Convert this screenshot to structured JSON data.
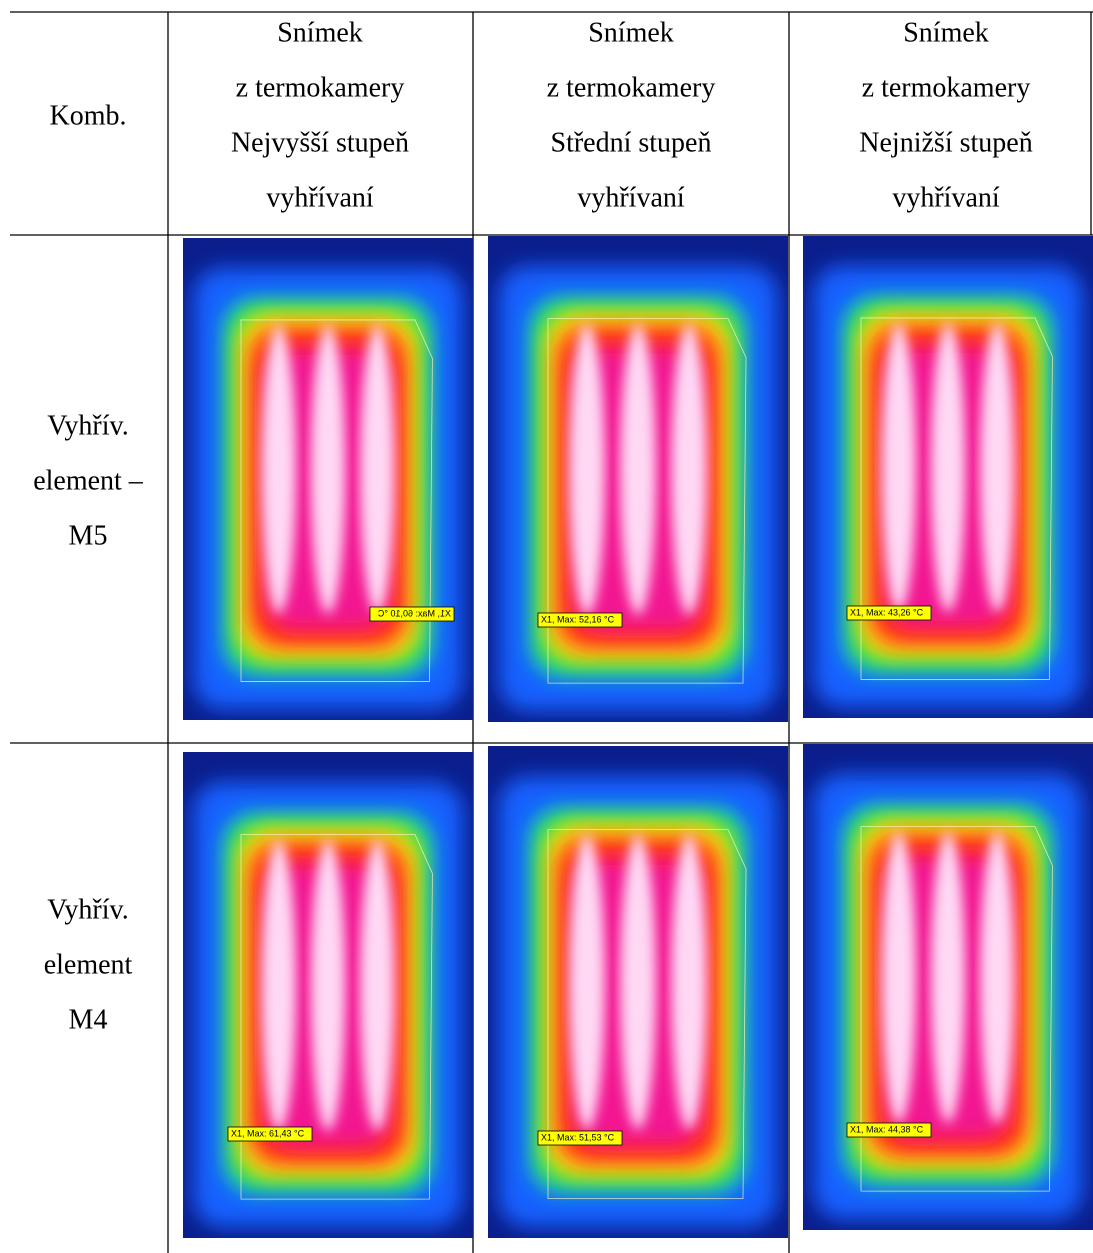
{
  "table": {
    "header": [
      [
        "Komb."
      ],
      [
        "Snímek",
        "z termokamery",
        "Nejvyšší stupeň",
        "vyhřívaní"
      ],
      [
        "Snímek",
        "z termokamery",
        "Střední stupeň",
        "vyhřívaní"
      ],
      [
        "Snímek",
        "z termokamery",
        "Nejnižší stupeň",
        "vyhřívaní"
      ]
    ],
    "rows": [
      {
        "label": [
          "Vyhřív.",
          "element –",
          "M5"
        ],
        "images": [
          {
            "label": "X1, Max: 60,10 °C",
            "mirrored": true
          },
          {
            "label": "X1, Max: 52,16 °C"
          },
          {
            "label": "X1, Max: 43,26 °C"
          }
        ]
      },
      {
        "label": [
          "Vyhřív.",
          "element",
          "M4"
        ],
        "images": [
          {
            "label": "X1, Max: 61,43 °C"
          },
          {
            "label": "X1, Max: 51,53 °C"
          },
          {
            "label": "X1, Max: 44,38 °C"
          }
        ]
      }
    ]
  }
}
